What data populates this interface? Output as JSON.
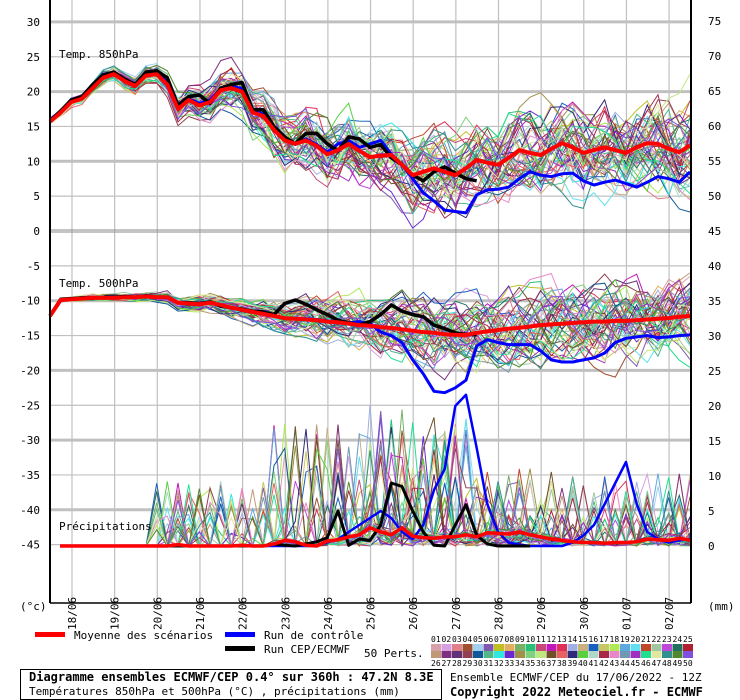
{
  "chart_data": {
    "type": "line",
    "title": "Diagramme ensembles ECMWF/CEP 0.4° sur 360h : 47.2N 8.3E",
    "subtitle": "Températures 850hPa et 500hPa (°C) , précipitations (mm)",
    "run_info": "Ensemble ECMWF/CEP du 17/06/2022 - 12Z",
    "copyright": "Copyright 2022 Meteociel.fr - ECMWF",
    "time_step_hours": 6,
    "x_dates": [
      "18/06",
      "19/06",
      "20/06",
      "21/06",
      "22/06",
      "23/06",
      "24/06",
      "25/06",
      "26/06",
      "27/06",
      "28/06",
      "29/06",
      "30/06",
      "01/07",
      "02/07"
    ],
    "left_unit": "(°c)",
    "right_unit": "(mm)",
    "left_ticks": [
      30,
      25,
      20,
      15,
      10,
      5,
      0,
      -5,
      -10,
      -15,
      -20,
      -25,
      -30,
      -35,
      -40,
      -45
    ],
    "right_ticks": [
      75,
      70,
      65,
      60,
      55,
      50,
      45,
      40,
      35,
      30,
      25,
      20,
      15,
      10,
      5,
      0
    ],
    "panels": {
      "t850": {
        "label": "Temp. 850hPa",
        "mean": [
          15.7,
          17,
          18.5,
          19,
          20.5,
          22,
          22.5,
          21.5,
          20.8,
          22.3,
          22.5,
          21,
          17.5,
          18.8,
          18,
          18.5,
          20.2,
          20.5,
          20,
          17,
          16.5,
          14.5,
          13,
          12.5,
          13,
          12.2,
          11,
          11.6,
          12.5,
          11.5,
          10.6,
          10.8,
          10.9,
          9.5,
          8,
          8.5,
          9,
          8.5,
          8,
          9,
          10.2,
          9.8,
          9.5,
          10.5,
          11.6,
          11.2,
          10.9,
          11.8,
          12.6,
          12,
          11.2,
          11.6,
          12,
          11.6,
          11.2,
          12,
          12.6,
          12.5,
          11.8,
          11.3,
          12.3
        ],
        "control": [
          16,
          17.2,
          18.7,
          19.3,
          20.8,
          22.5,
          22.8,
          21.7,
          21,
          22.5,
          22.8,
          21.3,
          17.8,
          19,
          18.3,
          18.8,
          20.4,
          20.8,
          20.4,
          17.2,
          16.8,
          14.6,
          13.2,
          12.4,
          13.2,
          12.4,
          11.3,
          12.5,
          13,
          12,
          12.5,
          13,
          11,
          9.5,
          7.5,
          5.5,
          4.3,
          3,
          2.8,
          2.6,
          5.2,
          5.9,
          6,
          6.3,
          7.5,
          8.5,
          8,
          7.8,
          8.2,
          8.3,
          7.2,
          6.6,
          7,
          7.3,
          6.8,
          6.3,
          7,
          7.8,
          7.5,
          7,
          8.5
        ],
        "cep": [
          15.8,
          17.2,
          18.8,
          19.3,
          21,
          22.4,
          22.8,
          21.8,
          21,
          22.8,
          23,
          22,
          18,
          19.3,
          19.5,
          18.3,
          20.5,
          21,
          21.3,
          17.4,
          17.4,
          15,
          13.5,
          12.5,
          14,
          14,
          12.5,
          11.5,
          13.5,
          13.2,
          12,
          12.4,
          10.5,
          9.5,
          8,
          7.2,
          8.5,
          9.2,
          8.3,
          7.5,
          7.2
        ],
        "spread_keys": [
          [
            0,
            0.3
          ],
          [
            10,
            0.8
          ],
          [
            16,
            1.8
          ],
          [
            24,
            2.6
          ],
          [
            36,
            3.4
          ],
          [
            60,
            4.2
          ]
        ]
      },
      "t500": {
        "label": "Temp. 500hPa",
        "mean": [
          -12.2,
          -9.9,
          -9.8,
          -9.7,
          -9.6,
          -9.6,
          -9.6,
          -9.5,
          -9.5,
          -9.4,
          -9.5,
          -9.5,
          -10.3,
          -10.4,
          -10.5,
          -10.3,
          -10.6,
          -11,
          -11.3,
          -11.6,
          -11.9,
          -12.2,
          -12.5,
          -12.6,
          -12.7,
          -12.8,
          -13,
          -13.1,
          -13.3,
          -13.5,
          -13.6,
          -13.8,
          -13.9,
          -14.1,
          -14.3,
          -14.5,
          -14.6,
          -14.8,
          -14.9,
          -14.9,
          -14.6,
          -14.4,
          -14.2,
          -14,
          -13.9,
          -13.7,
          -13.5,
          -13.4,
          -13.3,
          -13.2,
          -13.1,
          -13,
          -13,
          -12.9,
          -12.9,
          -12.8,
          -12.7,
          -12.6,
          -12.5,
          -12.3,
          -12.2
        ],
        "control": [
          -12.2,
          -9.9,
          -9.8,
          -9.7,
          -9.6,
          -9.5,
          -9.6,
          -9.5,
          -9.5,
          -9.4,
          -9.5,
          -9.5,
          -10.3,
          -10.4,
          -10.5,
          -10.3,
          -10.6,
          -11,
          -11.3,
          -11.6,
          -11.9,
          -12.2,
          -12.5,
          -12.6,
          -12.6,
          -12.7,
          -12.9,
          -13,
          -13.2,
          -13,
          -13.3,
          -14.5,
          -15,
          -16,
          -18.5,
          -20.5,
          -23,
          -23.2,
          -22.5,
          -21.4,
          -16.5,
          -15.6,
          -16,
          -16.3,
          -16.3,
          -16.3,
          -17.2,
          -18.5,
          -18.8,
          -18.8,
          -18.5,
          -18.2,
          -17.5,
          -16,
          -15.4,
          -15.2,
          -15,
          -15.3,
          -15.2,
          -15,
          -14.9
        ],
        "cep": [
          -12.2,
          -9.8,
          -9.7,
          -9.6,
          -9.6,
          -9.5,
          -9.5,
          -9.4,
          -9.5,
          -9.3,
          -9.5,
          -9.5,
          -10.3,
          -10.3,
          -10.4,
          -10.2,
          -10.8,
          -11,
          -11.2,
          -11.5,
          -11.6,
          -12,
          -10.4,
          -9.9,
          -10.5,
          -11.3,
          -12,
          -12.8,
          -13.2,
          -13.5,
          -13,
          -12,
          -10.6,
          -11.5,
          -12,
          -12.3,
          -13.5,
          -14,
          -14.6,
          -14.8,
          -14.9
        ],
        "spread_keys": [
          [
            0,
            0.2
          ],
          [
            10,
            0.4
          ],
          [
            18,
            1
          ],
          [
            26,
            2
          ],
          [
            36,
            3
          ],
          [
            60,
            3.4
          ]
        ]
      },
      "precip": {
        "label": "Précipitations",
        "mean": [
          0,
          0,
          0,
          0,
          0,
          0,
          0,
          0,
          0,
          0,
          0,
          0,
          0.2,
          0,
          0,
          0,
          0,
          0,
          0.1,
          0,
          0,
          0.3,
          0.8,
          0.6,
          0.1,
          0,
          0.7,
          0.9,
          1.3,
          1.6,
          2.6,
          2,
          1.6,
          2.6,
          1.4,
          1.2,
          1.1,
          1.3,
          1.3,
          1.6,
          1.3,
          1.9,
          1.8,
          1.7,
          2,
          1.6,
          1.3,
          1,
          0.8,
          0.6,
          0.5,
          0.5,
          0.4,
          0.5,
          0.5,
          0.6,
          1,
          0.9,
          0.8,
          1.1,
          0.8
        ],
        "control": [
          0,
          0,
          0,
          0,
          0,
          0,
          0,
          0,
          0,
          0,
          0,
          0,
          0,
          0,
          0,
          0,
          0,
          0,
          0,
          0,
          0,
          0,
          0,
          0,
          0,
          0,
          0.5,
          1,
          2,
          3,
          4,
          5,
          4,
          2,
          1,
          3,
          8,
          11,
          20,
          21.6,
          14,
          6,
          2,
          0.5,
          0.2,
          0,
          0,
          0,
          0,
          0.5,
          1.5,
          3,
          6,
          9,
          12,
          6,
          2,
          1,
          0.5,
          0.8,
          1
        ],
        "cep": [
          0,
          0,
          0,
          0,
          0,
          0,
          0,
          0,
          0,
          0,
          0,
          0,
          0,
          0,
          0,
          0,
          0,
          0,
          0,
          0,
          0,
          0.3,
          0.1,
          0,
          0.3,
          0.6,
          1.2,
          5,
          0.1,
          1,
          0.8,
          3,
          9,
          8.5,
          5,
          2,
          0.1,
          0,
          3,
          5.9,
          1.5,
          0.3,
          0,
          0,
          0,
          0
        ],
        "spike_scale": 8
      }
    },
    "legend": {
      "mean_label": "Moyenne des scénarios",
      "control_label": "Run de contrôle",
      "cep_label": "Run CEP/ECMWF",
      "perts_label": "50 Perts.",
      "mean_color": "#ff0000",
      "control_color": "#0000ff",
      "cep_color": "#000000",
      "members_row1": [
        "01",
        "02",
        "03",
        "04",
        "05",
        "06",
        "07",
        "08",
        "09",
        "10",
        "11",
        "12",
        "13",
        "14",
        "15",
        "16",
        "17",
        "18",
        "19",
        "20",
        "21",
        "22",
        "23",
        "24",
        "25"
      ],
      "members_row2": [
        "26",
        "27",
        "28",
        "29",
        "30",
        "31",
        "32",
        "33",
        "34",
        "35",
        "36",
        "37",
        "38",
        "39",
        "40",
        "41",
        "42",
        "43",
        "44",
        "45",
        "46",
        "47",
        "48",
        "49",
        "50"
      ],
      "member_colors": [
        "#d8a0a8",
        "#d8a0e0",
        "#e08088",
        "#a05030",
        "#a0d0f0",
        "#8058b0",
        "#c0c020",
        "#e0b060",
        "#78b068",
        "#28c078",
        "#c84878",
        "#c018b8",
        "#e03058",
        "#a0b0e0",
        "#c8b080",
        "#1860c0",
        "#c8c860",
        "#b0e858",
        "#60a8e0",
        "#60e0f0",
        "#c04828",
        "#a0c8a0",
        "#c048d8",
        "#207060",
        "#b02030",
        "#c09878",
        "#803080",
        "#603078",
        "#904050",
        "#105898",
        "#50b888",
        "#30e8e0",
        "#6828d0",
        "#a09048",
        "#80d080",
        "#c0e880",
        "#705028",
        "#e86060",
        "#302878",
        "#58d040",
        "#b0d8c8",
        "#a82848",
        "#e888c8",
        "#7098b0",
        "#a030c0",
        "#20e090",
        "#e0e8a0",
        "#309090",
        "#508830",
        "#8050e0"
      ]
    }
  }
}
